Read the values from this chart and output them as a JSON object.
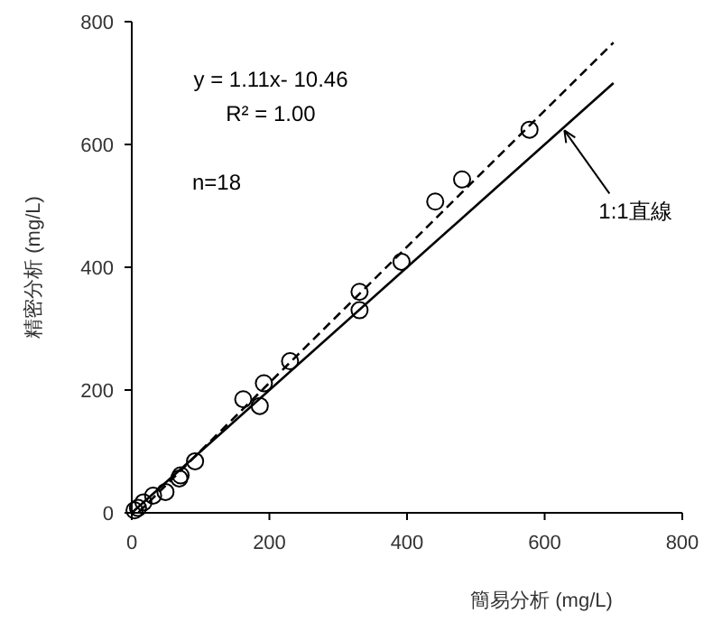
{
  "chart_data": {
    "type": "scatter",
    "xlabel": "簡易分析 (mg/L)",
    "ylabel": "精密分析 (mg/L)",
    "xlim": [
      0,
      800
    ],
    "ylim": [
      0,
      800
    ],
    "xticks": [
      0,
      200,
      400,
      600,
      800
    ],
    "yticks": [
      0,
      200,
      400,
      600,
      800
    ],
    "grid": false,
    "series": [
      {
        "color": "#000000",
        "marker": "circle",
        "x": [
          578,
          480,
          441,
          392,
          331,
          331,
          230,
          192,
          186,
          162,
          92,
          71,
          69,
          49,
          31,
          17,
          9,
          4
        ],
        "values": [
          624,
          543,
          507,
          409,
          360,
          330,
          247,
          211,
          174,
          185,
          84,
          61,
          56,
          34,
          28,
          17,
          8,
          4
        ]
      },
      {
        "type": "line",
        "color": "#000000",
        "line_style": "dashed",
        "marker": "none",
        "x": [
          10,
          700
        ],
        "values": [
          1,
          766
        ]
      },
      {
        "type": "line",
        "color": "#000000",
        "line_style": "solid",
        "marker": "none",
        "x": [
          0,
          700
        ],
        "values": [
          0,
          700
        ]
      }
    ],
    "annotations": [
      "y = 1.11x- 10.46",
      "R² = 1.00",
      "n=18",
      {
        "text": "1:1直線",
        "x": 626,
        "y": 626
      }
    ]
  }
}
